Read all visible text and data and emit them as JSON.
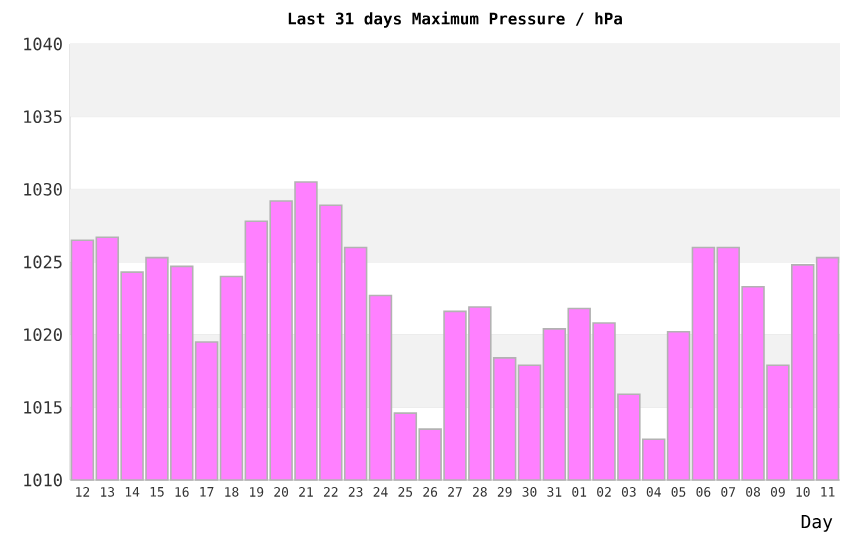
{
  "chart_data": {
    "type": "bar",
    "title": "Last 31 days Maximum Pressure / hPa",
    "xlabel": "Day",
    "categories": [
      "12",
      "13",
      "14",
      "15",
      "16",
      "17",
      "18",
      "19",
      "20",
      "21",
      "22",
      "23",
      "24",
      "25",
      "26",
      "27",
      "28",
      "29",
      "30",
      "31",
      "01",
      "02",
      "03",
      "04",
      "05",
      "06",
      "07",
      "08",
      "09",
      "10",
      "11"
    ],
    "values": [
      1026.5,
      1026.7,
      1024.3,
      1025.3,
      1024.7,
      1019.5,
      1024.0,
      1027.8,
      1029.2,
      1030.5,
      1028.9,
      1026.0,
      1022.7,
      1014.6,
      1013.5,
      1021.6,
      1021.9,
      1018.4,
      1017.9,
      1020.4,
      1021.8,
      1020.8,
      1015.9,
      1012.8,
      1020.2,
      1026.0,
      1026.0,
      1023.3,
      1017.9,
      1024.8,
      1025.3
    ],
    "color": "#ff80ff",
    "ylim": [
      1010,
      1040
    ],
    "yticks": [
      1010,
      1015,
      1020,
      1025,
      1030,
      1035,
      1040
    ],
    "bands": [
      {
        "axis": "y",
        "from": 1035,
        "to": 1040,
        "color": "#f2f2f2"
      },
      {
        "axis": "y",
        "from": 1025,
        "to": 1030,
        "color": "#f2f2f2"
      },
      {
        "axis": "y",
        "from": 1015,
        "to": 1020,
        "color": "#f2f2f2"
      }
    ],
    "grid": "y"
  }
}
